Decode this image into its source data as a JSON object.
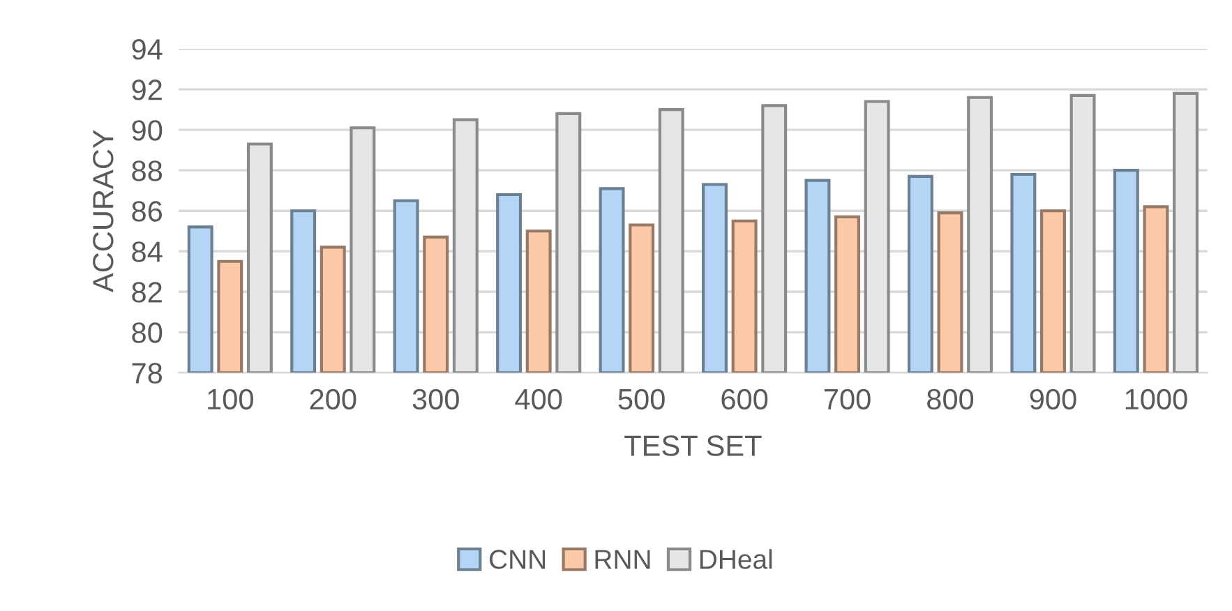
{
  "chart_data": {
    "type": "bar",
    "xlabel": "TEST SET",
    "ylabel": "ACCURACY",
    "categories": [
      "100",
      "200",
      "300",
      "400",
      "500",
      "600",
      "700",
      "800",
      "900",
      "1000"
    ],
    "series": [
      {
        "name": "CNN",
        "color": "#b4d5f5",
        "values": [
          85.2,
          86.0,
          86.5,
          86.8,
          87.1,
          87.3,
          87.5,
          87.7,
          87.8,
          88.0
        ]
      },
      {
        "name": "RNN",
        "color": "#fbc9a8",
        "values": [
          83.5,
          84.2,
          84.7,
          85.0,
          85.3,
          85.5,
          85.7,
          85.9,
          86.0,
          86.2
        ]
      },
      {
        "name": "DHeal",
        "color": "#e6e6e6",
        "values": [
          89.3,
          90.1,
          90.5,
          90.8,
          91.0,
          91.2,
          91.4,
          91.6,
          91.7,
          91.8
        ]
      }
    ],
    "ylim": [
      78,
      94
    ],
    "yticks": [
      78,
      80,
      82,
      84,
      86,
      88,
      90,
      92,
      94
    ],
    "grid": "y",
    "legend": "bottom"
  }
}
